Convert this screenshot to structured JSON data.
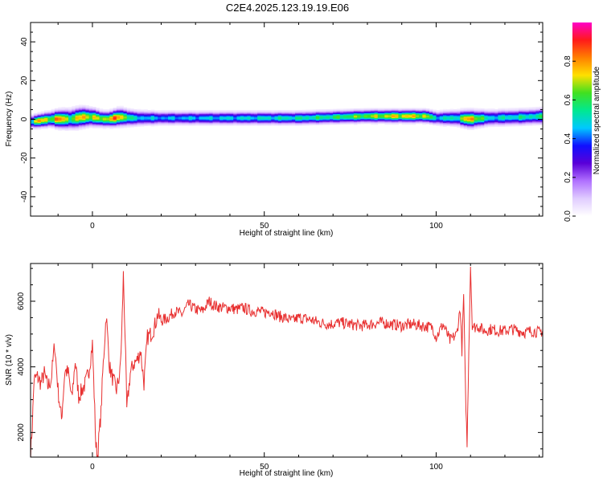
{
  "title": "C2E4.2025.123.19.19.E06",
  "colors": {
    "snr_line": "#e83030",
    "colormap": [
      "#ffffff",
      "#e0ccff",
      "#b070ff",
      "#5a00d8",
      "#1010ff",
      "#00c8ff",
      "#00e890",
      "#40e020",
      "#ffe000",
      "#ff8000",
      "#ff1a1a",
      "#ff00c8"
    ]
  },
  "chart_data": [
    {
      "type": "heatmap",
      "xlabel": "Height of straight line (km)",
      "ylabel": "Frequency (Hz)",
      "xlim": [
        -18,
        131
      ],
      "ylim": [
        -50,
        50
      ],
      "x_ticks": [
        0,
        50,
        100
      ],
      "y_ticks": [
        -40,
        -20,
        0,
        20,
        40
      ],
      "colorbar": {
        "label": "Normalized spectral amplitude",
        "range": [
          0,
          1
        ],
        "ticks": [
          "0.0",
          "0.2",
          "0.4",
          "0.6",
          "0.8"
        ]
      },
      "band_profile": [
        {
          "x": -18,
          "center": -1.5,
          "halfwidth": 3,
          "amp": 0.55
        },
        {
          "x": -16,
          "center": -1,
          "halfwidth": 3,
          "amp": 0.9
        },
        {
          "x": -12,
          "center": 0,
          "halfwidth": 3.5,
          "amp": 0.75
        },
        {
          "x": -10,
          "center": 0,
          "halfwidth": 4,
          "amp": 0.95
        },
        {
          "x": -6,
          "center": 0,
          "halfwidth": 4.5,
          "amp": 0.7
        },
        {
          "x": -3,
          "center": 1,
          "halfwidth": 4.5,
          "amp": 0.9
        },
        {
          "x": 0,
          "center": 1,
          "halfwidth": 4,
          "amp": 0.8
        },
        {
          "x": 3,
          "center": 0,
          "halfwidth": 3.5,
          "amp": 0.75
        },
        {
          "x": 5,
          "center": 0,
          "halfwidth": 3.5,
          "amp": 0.9
        },
        {
          "x": 8,
          "center": 1,
          "halfwidth": 4,
          "amp": 0.92
        },
        {
          "x": 12,
          "center": 0.5,
          "halfwidth": 3.5,
          "amp": 0.55
        },
        {
          "x": 20,
          "center": 0.5,
          "halfwidth": 3,
          "amp": 0.5
        },
        {
          "x": 30,
          "center": 0.5,
          "halfwidth": 3,
          "amp": 0.52
        },
        {
          "x": 45,
          "center": 0.5,
          "halfwidth": 3,
          "amp": 0.55
        },
        {
          "x": 60,
          "center": 0.5,
          "halfwidth": 3,
          "amp": 0.6
        },
        {
          "x": 70,
          "center": 1,
          "halfwidth": 3,
          "amp": 0.65
        },
        {
          "x": 80,
          "center": 1.5,
          "halfwidth": 3,
          "amp": 0.75
        },
        {
          "x": 90,
          "center": 1.5,
          "halfwidth": 3,
          "amp": 0.85
        },
        {
          "x": 97,
          "center": 1.5,
          "halfwidth": 3,
          "amp": 0.8
        },
        {
          "x": 100,
          "center": 0.5,
          "halfwidth": 3,
          "amp": 0.55
        },
        {
          "x": 106,
          "center": 0.5,
          "halfwidth": 3.5,
          "amp": 0.6
        },
        {
          "x": 110,
          "center": 0,
          "halfwidth": 4,
          "amp": 0.95
        },
        {
          "x": 115,
          "center": 0.5,
          "halfwidth": 3.5,
          "amp": 0.55
        },
        {
          "x": 125,
          "center": 1,
          "halfwidth": 3.5,
          "amp": 0.6
        },
        {
          "x": 131,
          "center": 1.5,
          "halfwidth": 3.5,
          "amp": 0.62
        }
      ]
    },
    {
      "type": "line",
      "xlabel": "Height of straight line (km)",
      "ylabel": "SNR (10 * v/v)",
      "xlim": [
        -18,
        131
      ],
      "ylim": [
        1250,
        7150
      ],
      "x_ticks": [
        0,
        50,
        100
      ],
      "y_ticks": [
        2000,
        4000,
        6000
      ],
      "series": [
        {
          "x": [
            -18,
            -17.5,
            -17,
            -16,
            -15,
            -14,
            -13,
            -12,
            -11,
            -10,
            -9,
            -8,
            -7,
            -6,
            -5,
            -4,
            -3,
            -2,
            -1,
            0,
            0.5,
            1,
            1.5,
            2,
            2.5,
            3,
            4,
            5,
            6,
            7,
            8,
            8.5,
            9,
            9.5,
            10,
            11,
            12,
            13,
            14,
            15,
            16,
            17,
            18,
            19,
            20,
            22,
            24,
            26,
            28,
            30,
            32,
            34,
            35,
            36,
            38,
            40,
            42,
            44,
            46,
            48,
            50,
            52,
            54,
            56,
            58,
            60,
            63,
            66,
            69,
            72,
            75,
            78,
            81,
            84,
            87,
            90,
            93,
            96,
            99,
            100,
            102,
            104,
            106,
            107,
            107.5,
            108,
            108.5,
            109,
            109.5,
            110,
            110.5,
            111,
            112,
            114,
            116,
            118,
            120,
            122,
            124,
            126,
            128,
            130,
            131
          ],
          "y": [
            1350,
            2200,
            3600,
            3700,
            3500,
            3800,
            3400,
            3600,
            4700,
            3300,
            2400,
            3900,
            3800,
            3000,
            4200,
            3100,
            3300,
            3500,
            3900,
            4700,
            3200,
            1600,
            1300,
            2000,
            2600,
            3800,
            5600,
            4000,
            3600,
            3300,
            3800,
            4900,
            6800,
            5000,
            2700,
            3800,
            4100,
            4200,
            4500,
            3500,
            4900,
            5000,
            5200,
            5600,
            5400,
            5500,
            5700,
            5600,
            5900,
            5750,
            5700,
            6000,
            5900,
            5850,
            5800,
            5800,
            5750,
            5800,
            5700,
            5700,
            5650,
            5700,
            5550,
            5500,
            5400,
            5500,
            5450,
            5350,
            5300,
            5350,
            5300,
            5250,
            5300,
            5350,
            5300,
            5250,
            5300,
            5250,
            5200,
            4900,
            5300,
            4800,
            5000,
            5800,
            4500,
            6200,
            3400,
            1600,
            4500,
            7100,
            5300,
            5200,
            5250,
            5100,
            5150,
            5100,
            5100,
            5150,
            5100,
            5050,
            5100,
            5050,
            5100
          ]
        }
      ]
    }
  ]
}
